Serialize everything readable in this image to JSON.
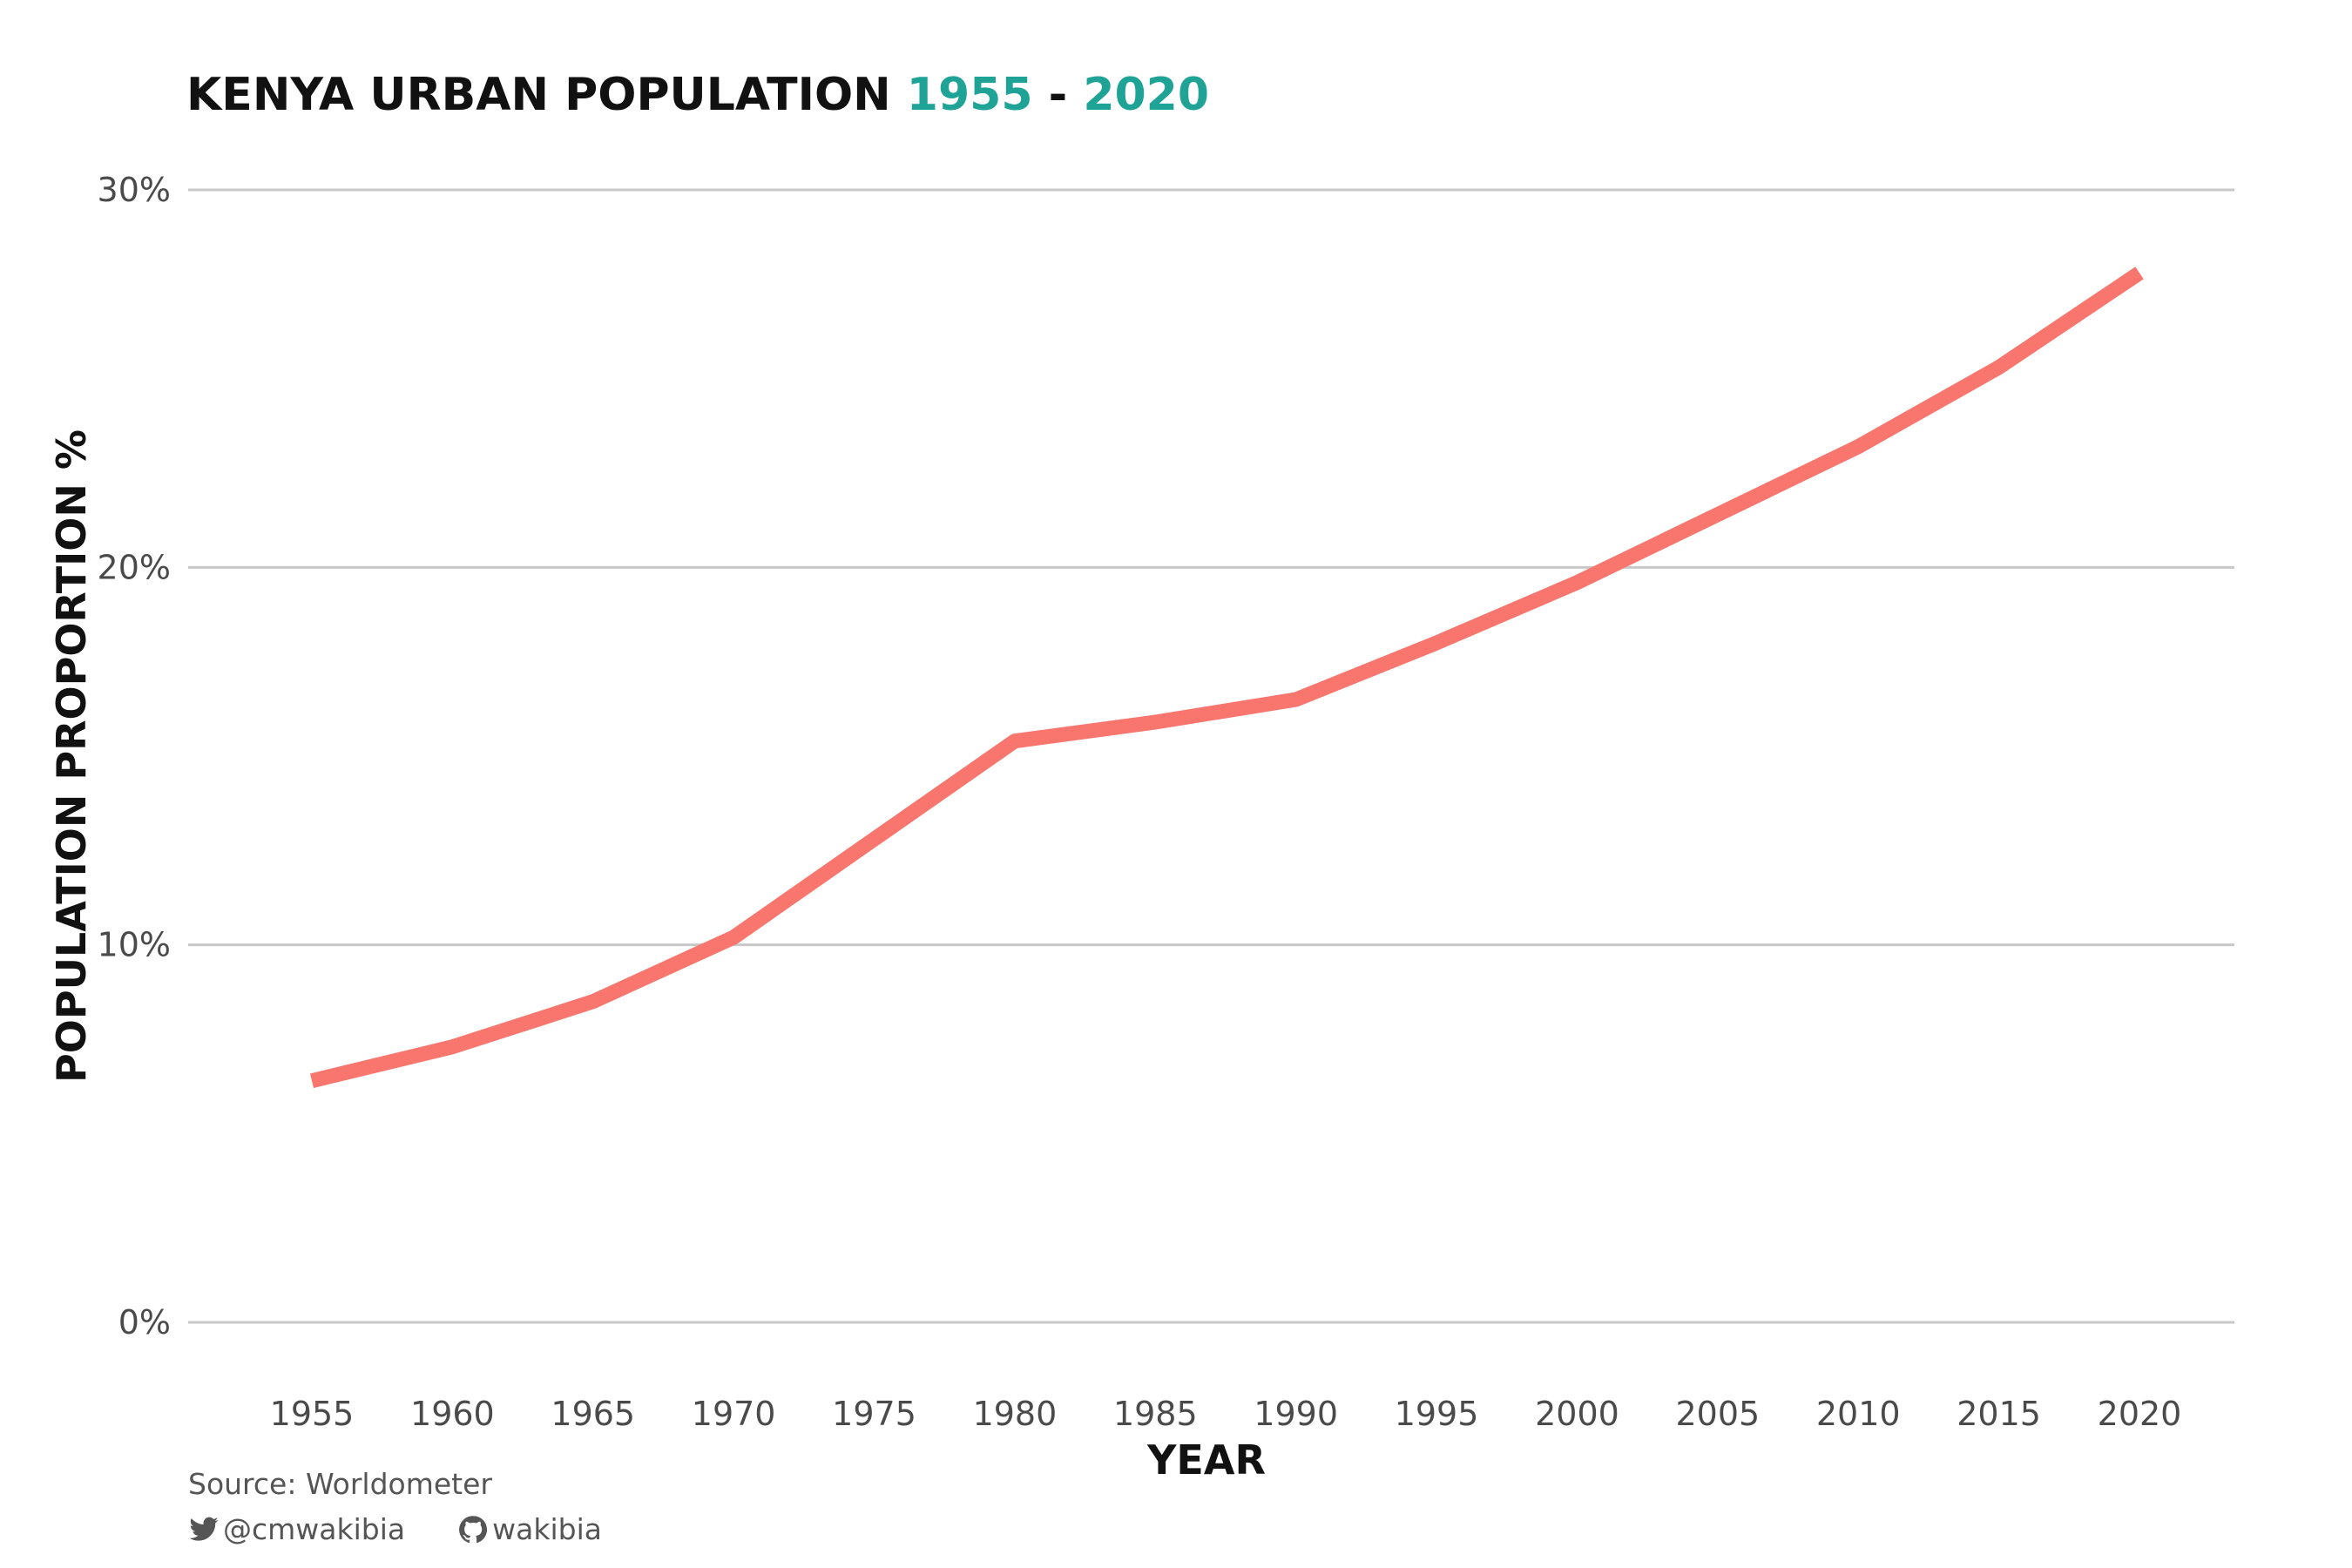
{
  "chart_data": {
    "type": "line",
    "title": {
      "prefix": "KENYA URBAN POPULATION ",
      "start_year": "1955",
      "separator": " - ",
      "end_year": "2020"
    },
    "xlabel": "YEAR",
    "ylabel": "POPULATION PROPORTION %",
    "x": [
      1955,
      1960,
      1965,
      1970,
      1975,
      1980,
      1985,
      1990,
      1995,
      2000,
      2005,
      2010,
      2015,
      2020
    ],
    "x_tick_labels": [
      "1955",
      "1960",
      "1965",
      "1970",
      "1975",
      "1980",
      "1985",
      "1990",
      "1995",
      "2000",
      "2005",
      "2010",
      "2015",
      "2020"
    ],
    "series": [
      {
        "values": [
          6.4,
          7.3,
          8.5,
          10.2,
          12.8,
          15.4,
          15.9,
          16.5,
          18.0,
          19.6,
          21.4,
          23.2,
          25.3,
          27.8
        ]
      }
    ],
    "y_ticks": [
      0,
      10,
      20,
      30
    ],
    "y_tick_labels": [
      "0%",
      "10%",
      "20%",
      "30%"
    ],
    "ylim": [
      0,
      30
    ],
    "xlim": [
      1955,
      2020
    ],
    "grid": "horizontal",
    "legend": "none",
    "line_color": "#f8766d",
    "accent_color": "#1fa397"
  },
  "caption": {
    "source": "Source: Worldometer",
    "twitter_handle": "@cmwakibia",
    "twitter_icon": "twitter-bird-icon",
    "github_handle": "wakibia",
    "github_icon": "github-octocat-icon"
  }
}
